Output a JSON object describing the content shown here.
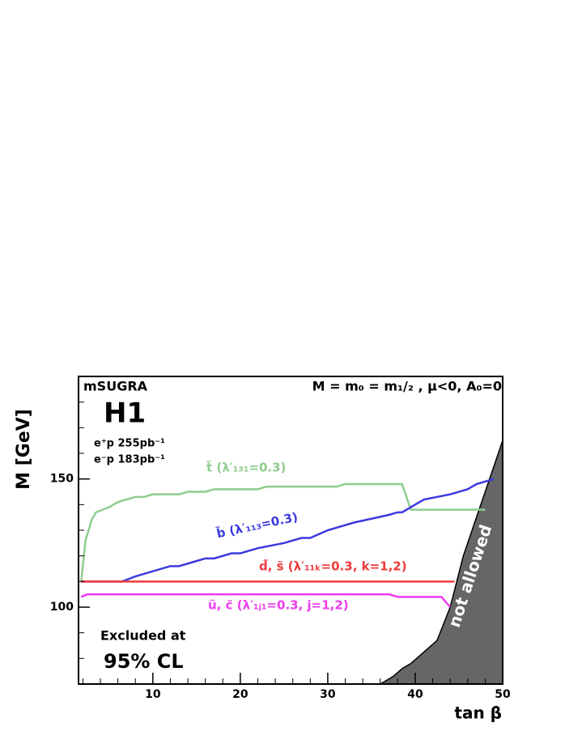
{
  "chart_data": {
    "type": "line",
    "title": "mSUGRA",
    "subtitle": "M = m₀ = m₁/₂ ,  μ<0,  A₀=0",
    "annotations": [
      "H1",
      "e⁺p 255pb⁻¹",
      "e⁻p 183pb⁻¹",
      "Excluded at",
      "95% CL"
    ],
    "x_label": "tan β",
    "y_label": "M [GeV]",
    "xlim": [
      1.5,
      50
    ],
    "ylim": [
      70,
      190
    ],
    "xticks": [
      10,
      20,
      30,
      40,
      50
    ],
    "yticks": [
      100,
      150
    ],
    "xminorticks": [
      2,
      4,
      6,
      8,
      12,
      14,
      16,
      18,
      22,
      24,
      26,
      28,
      32,
      34,
      36,
      38,
      42,
      44,
      46,
      48
    ],
    "yminorticks": [
      80,
      90,
      110,
      120,
      130,
      140,
      160,
      170,
      180
    ],
    "series": [
      {
        "name": "t̃  (λ′₁₃₁=0.3)",
        "color": "#8fcc8f",
        "x": [
          1.8,
          2.3,
          3,
          3.5,
          5,
          6,
          7,
          8,
          9,
          10,
          13,
          14,
          16,
          17,
          22,
          23,
          31,
          32,
          38.5,
          39.5,
          48
        ],
        "values": [
          110,
          126,
          134,
          137,
          139,
          141,
          142,
          143,
          143,
          144,
          144,
          145,
          145,
          146,
          146,
          147,
          147,
          148,
          148,
          138,
          138
        ]
      },
      {
        "name": "b̃  (λ′₁₁₃=0.3)",
        "color": "#3a3ae0",
        "x": [
          1.8,
          6.5,
          8,
          10,
          12,
          13,
          15,
          16,
          17,
          19,
          20,
          22,
          25,
          27,
          28,
          30,
          33,
          37,
          38,
          38.5,
          40,
          41,
          44,
          46,
          47,
          48,
          49
        ],
        "values": [
          110,
          110,
          112,
          114,
          116,
          116,
          118,
          119,
          119,
          121,
          121,
          123,
          125,
          127,
          127,
          130,
          133,
          136,
          137,
          137,
          140,
          142,
          144,
          146,
          148,
          149,
          150
        ]
      },
      {
        "name": "d̃, s̃  (λ′₁₁ₖ=0.3, k=1,2)",
        "color": "#ee3b3b",
        "x": [
          1.8,
          44.5
        ],
        "values": [
          110,
          110
        ]
      },
      {
        "name": "ũ, c̃  (λ′₁ⱼ₁=0.3, j=1,2)",
        "color": "#ee3bee",
        "x": [
          1.8,
          2.5,
          37,
          38,
          43,
          44
        ],
        "values": [
          104,
          105,
          105,
          104,
          104,
          100
        ]
      }
    ],
    "region": {
      "name": "not allowed",
      "color": "#666666",
      "x": [
        36,
        37.5,
        38.5,
        39.5,
        42.5,
        44,
        45.5,
        47.5,
        49,
        50
      ],
      "values": [
        70,
        73,
        76,
        78,
        87,
        100,
        120,
        140,
        155,
        165
      ]
    }
  }
}
